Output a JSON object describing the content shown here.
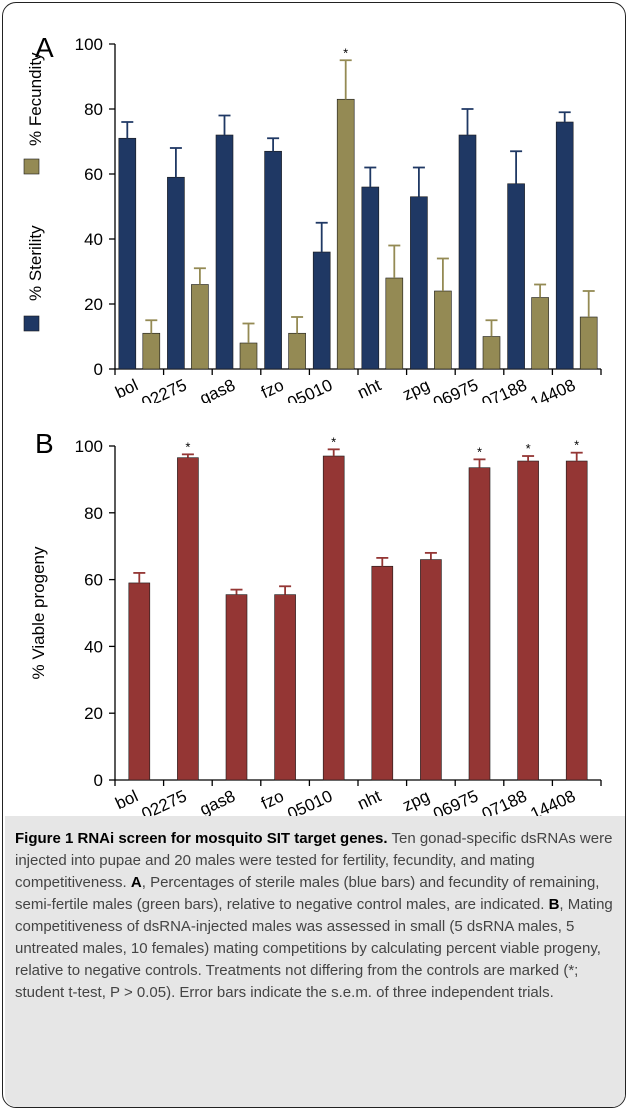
{
  "chart_data": [
    {
      "panel_letter": "A",
      "type": "bar",
      "categories": [
        "bol",
        "02275",
        "gas8",
        "fzo",
        "05010",
        "nht",
        "zpg",
        "06975",
        "07188",
        "14408"
      ],
      "yticks": [
        "0",
        "20",
        "40",
        "60",
        "80",
        "100"
      ],
      "ylim": [
        0,
        100
      ],
      "ylabel": "",
      "legend_placement": "left, rotated",
      "grid": false,
      "series": [
        {
          "name": "% Sterility",
          "color": "#1f3864",
          "values": [
            71,
            59,
            72,
            67,
            36,
            56,
            53,
            72,
            57,
            76
          ],
          "errors": [
            5,
            9,
            6,
            4,
            9,
            6,
            9,
            8,
            10,
            3
          ]
        },
        {
          "name": "% Fecundity",
          "color": "#948a54",
          "values": [
            11,
            26,
            8,
            11,
            83,
            28,
            24,
            10,
            22,
            16
          ],
          "errors": [
            4,
            5,
            6,
            5,
            12,
            10,
            10,
            5,
            4,
            8
          ]
        }
      ],
      "annotations": [
        {
          "category": "05010",
          "series": "% Fecundity",
          "text": "*"
        }
      ]
    },
    {
      "panel_letter": "B",
      "type": "bar",
      "categories": [
        "bol",
        "02275",
        "gas8",
        "fzo",
        "05010",
        "nht",
        "zpg",
        "06975",
        "07188",
        "14408"
      ],
      "yticks": [
        "0",
        "20",
        "40",
        "60",
        "80",
        "100"
      ],
      "ylim": [
        0,
        100
      ],
      "ylabel": "% Viable progeny",
      "grid": false,
      "series": [
        {
          "color": "#943634",
          "values": [
            59,
            96.5,
            55.5,
            55.5,
            97,
            64,
            66,
            93.5,
            95.5,
            95.5
          ],
          "errors": [
            3,
            1,
            1.5,
            2.5,
            2,
            2.5,
            2,
            2.5,
            1.5,
            2.5
          ]
        }
      ],
      "annotations": [
        {
          "category": "02275",
          "text": "*"
        },
        {
          "category": "05010",
          "text": "*"
        },
        {
          "category": "06975",
          "text": "*"
        },
        {
          "category": "07188",
          "text": "*"
        },
        {
          "category": "14408",
          "text": "*"
        }
      ]
    }
  ],
  "caption": {
    "label": "Figure 1 RNAi screen for mosquito SIT target genes.",
    "text1": " Ten gonad-specific dsRNAs were injected into pupae and 20 males were tested for fertility, fecundity, and mating competitiveness. ",
    "a_label": "A",
    "text2": ", Percentages of sterile males (blue bars) and fecundity of remaining, semi-fertile males (green bars), relative to negative control males, are indicated. ",
    "b_label": "B",
    "text3": ", Mating competitiveness of dsRNA-injected males was assessed in small (5 dsRNA males, 5 untreated males, 10 females) mating competitions by calculating percent viable progeny, relative to negative controls. Treatments not differing from the controls are marked (*; student t-test, P > 0.05). Error bars indicate the s.e.m. of three independent trials."
  }
}
